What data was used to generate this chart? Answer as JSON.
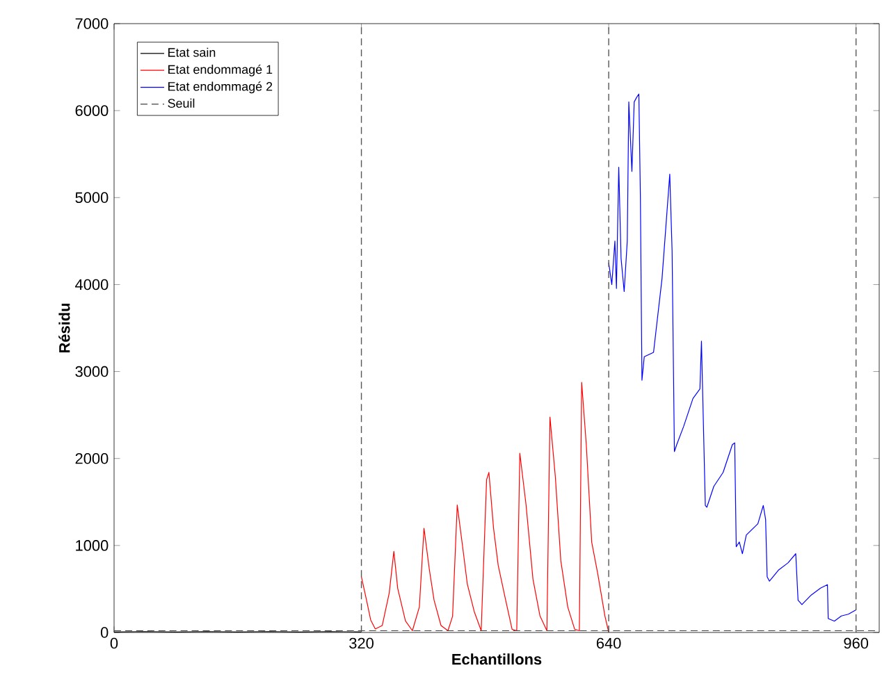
{
  "chart_data": {
    "type": "line",
    "xlabel": "Echantillons",
    "ylabel": "Résidu",
    "xlim": [
      0,
      990
    ],
    "ylim": [
      0,
      7000
    ],
    "xticks": [
      0,
      320,
      640,
      960
    ],
    "yticks": [
      0,
      1000,
      2000,
      3000,
      4000,
      5000,
      6000,
      7000
    ],
    "grid": false,
    "legend": "top left",
    "marker": "none",
    "ref_lines": [
      {
        "axis": "x",
        "value": 320,
        "color": "#555555",
        "line_style": "dashed"
      },
      {
        "axis": "x",
        "value": 640,
        "color": "#555555",
        "line_style": "dashed"
      },
      {
        "axis": "x",
        "value": 960,
        "color": "#555555",
        "line_style": "dashed"
      }
    ],
    "series": [
      {
        "name": "Etat sain",
        "color": "#000000",
        "x": [
          0,
          40,
          80,
          120,
          160,
          200,
          240,
          280,
          320
        ],
        "values": [
          5,
          10,
          5,
          10,
          5,
          10,
          5,
          10,
          5
        ]
      },
      {
        "name": "Etat endommagé 1",
        "color": "#ff0000",
        "x": [
          320,
          327,
          332,
          338,
          347,
          356,
          362,
          367,
          377,
          386,
          395,
          401,
          408,
          414,
          423,
          432,
          438,
          444,
          451,
          457,
          466,
          475,
          482,
          485,
          491,
          497,
          506,
          515,
          521,
          525,
          533,
          542,
          551,
          560,
          564,
          571,
          578,
          587,
          596,
          602,
          605,
          611,
          618,
          626,
          635,
          640
        ],
        "values": [
          640,
          356,
          144,
          40,
          80,
          452,
          932,
          506,
          133,
          20,
          293,
          1198,
          719,
          372,
          80,
          20,
          187,
          1465,
          985,
          559,
          240,
          20,
          1757,
          1840,
          1198,
          772,
          399,
          35,
          20,
          2060,
          1470,
          612,
          192,
          20,
          2476,
          1784,
          826,
          293,
          35,
          20,
          2875,
          2157,
          1038,
          666,
          192,
          0
        ]
      },
      {
        "name": "Etat endommagé 2",
        "color": "#0000ff",
        "x": [
          640,
          644,
          648,
          650,
          653,
          656,
          660,
          664,
          666,
          670,
          673,
          676,
          679,
          681,
          683,
          686,
          698,
          709,
          719,
          722,
          725,
          728,
          737,
          749,
          758,
          760,
          765,
          767,
          776,
          788,
          800,
          803,
          805,
          809,
          813,
          818,
          833,
          840,
          843,
          845,
          848,
          860,
          872,
          882,
          885,
          890,
          902,
          914,
          923,
          924,
          932,
          941,
          950,
          960
        ],
        "values": [
          4250,
          4000,
          4500,
          3955,
          5350,
          4300,
          3920,
          4500,
          6100,
          5300,
          6100,
          6150,
          6190,
          5000,
          2900,
          3170,
          3220,
          4070,
          5270,
          4390,
          2080,
          2160,
          2370,
          2690,
          2800,
          3350,
          1460,
          1440,
          1680,
          1840,
          2160,
          2180,
          985,
          1040,
          905,
          1120,
          1250,
          1460,
          1300,
          640,
          590,
          720,
          800,
          905,
          370,
          320,
          430,
          510,
          550,
          160,
          130,
          190,
          210,
          260
        ]
      },
      {
        "name": "Seuil",
        "color": "#404040",
        "line_style": "dashed",
        "x": [
          0,
          990
        ],
        "values": [
          20,
          20
        ]
      }
    ]
  }
}
